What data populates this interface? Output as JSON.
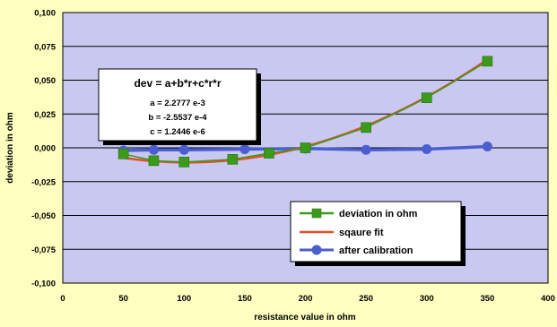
{
  "chart_data": {
    "type": "line",
    "xlabel": "resistance value in ohm",
    "ylabel": "deviation in ohm",
    "xlim": [
      0,
      400
    ],
    "ylim": [
      -0.1,
      0.1
    ],
    "x_ticks": [
      "0",
      "50",
      "100",
      "150",
      "200",
      "250",
      "300",
      "350",
      "400"
    ],
    "y_ticks": [
      "0,100",
      "0,075",
      "0,050",
      "0,025",
      "0,000",
      "-0,025",
      "-0,050",
      "-0,075",
      "-0,100"
    ],
    "grid": true,
    "legend_position": "bottom-right",
    "series": [
      {
        "name": "deviation in ohm",
        "color": "#3a9a1a",
        "marker": "square",
        "x": [
          50,
          75,
          100,
          140,
          170,
          200,
          250,
          300,
          350
        ],
        "y": [
          -0.0045,
          -0.0095,
          -0.0105,
          -0.0085,
          -0.004,
          0.0,
          0.015,
          0.037,
          0.064
        ]
      },
      {
        "name": "sqaure fit",
        "color": "#e0502a",
        "marker": "none",
        "fit": {
          "a": 0.0022777,
          "b": -0.00025537,
          "c": 1.2446e-06
        },
        "x_range": [
          50,
          350
        ]
      },
      {
        "name": "after calibration",
        "color": "#4a5ecf",
        "marker": "circle",
        "x": [
          50,
          75,
          100,
          150,
          200,
          250,
          300,
          350
        ],
        "y": [
          -0.002,
          -0.0015,
          -0.0015,
          -0.001,
          -0.0005,
          -0.0015,
          -0.001,
          0.001
        ]
      }
    ],
    "annotation": {
      "title": "dev = a+b*r+c*r*r",
      "lines": [
        "a = 2.2777  e-3",
        "b = -2.5537 e-4",
        "c = 1.2446  e-6"
      ]
    }
  },
  "colors": {
    "background": "#ffffc0",
    "plot_area": "#c8c8f0",
    "grid": "#000000"
  }
}
